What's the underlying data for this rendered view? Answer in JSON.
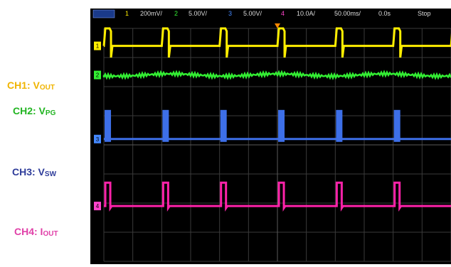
{
  "labels": [
    {
      "main": "CH1: V",
      "sub": "OUT",
      "color": "#f0b400"
    },
    {
      "main": "CH2: V",
      "sub": "PG",
      "color": "#22b522"
    },
    {
      "main": "CH3: V",
      "sub": "SW",
      "color": "#2e3c9a"
    },
    {
      "main": "CH4: I",
      "sub": "OUT",
      "color": "#e040a8"
    }
  ],
  "status_bar": {
    "mode": "",
    "ch1": {
      "num": "1",
      "scale": "200mV/",
      "color": "#ffee00"
    },
    "ch2": {
      "num": "2",
      "scale": "5.00V/",
      "color": "#33ee33"
    },
    "ch3": {
      "num": "3",
      "scale": "5.00V/",
      "color": "#4488ff"
    },
    "ch4": {
      "num": "4",
      "scale": "10.0A/",
      "color": "#ff44cc"
    },
    "timebase": "50.00ms/",
    "delay": "0.0s",
    "run_state": "Stop"
  },
  "chart_data": {
    "type": "line",
    "title": "",
    "xlabel": "",
    "ylabel": "",
    "grid": true,
    "event_times_div": [
      0.05,
      2.05,
      4.05,
      6.05,
      8.05,
      10.05,
      12.05
    ],
    "series": [
      {
        "name": "CH1: VOUT",
        "color": "#ffee00",
        "baseline_div": 3.4,
        "pulse_div": 0.6,
        "dip_div": -0.4
      },
      {
        "name": "CH2: VPG",
        "color": "#33ee33",
        "baseline_div": 2.4,
        "noise_div": 0.1
      },
      {
        "name": "CH3: VSW",
        "color": "#3d6fe8",
        "baseline_div": 0.2,
        "pulse_div": 1.0
      },
      {
        "name": "CH4: IOUT",
        "color": "#ff22aa",
        "baseline_div": -2.1,
        "pulse_div": 0.8
      }
    ]
  }
}
